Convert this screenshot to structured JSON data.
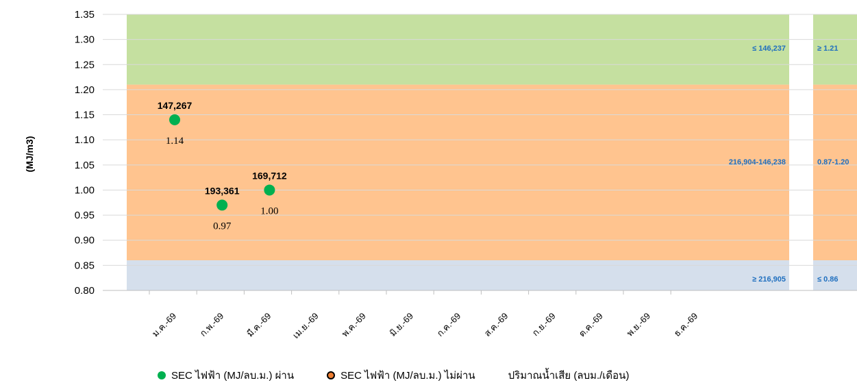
{
  "chart_data": {
    "type": "scatter",
    "ylabel": "(MJ/m3)",
    "ylim": [
      0.8,
      1.35
    ],
    "yticks": [
      "1.35",
      "1.30",
      "1.25",
      "1.20",
      "1.15",
      "1.10",
      "1.05",
      "1.00",
      "0.95",
      "0.90",
      "0.85",
      "0.80"
    ],
    "categories": [
      "ม.ค.-69",
      "ก.พ.-69",
      "มี.ค.-69",
      "เม.ย.-69",
      "พ.ค.-69",
      "มิ.ย.-69",
      "ก.ค.-69",
      "ส.ค.-69",
      "ก.ย.-69",
      "ต.ค.-69",
      "พ.ย.-69",
      "ธ.ค.-69"
    ],
    "series": [
      {
        "name": "SEC ไฟฟ้า (MJ/ลบ.ม.) ผ่าน",
        "color": "#00b050",
        "points": [
          {
            "category": "ม.ค.-69",
            "sec": 1.14,
            "wastewater": "147,267"
          },
          {
            "category": "ก.พ.-69",
            "sec": 0.97,
            "wastewater": "193,361"
          },
          {
            "category": "มี.ค.-69",
            "sec": 1.0,
            "wastewater": "169,712"
          }
        ]
      },
      {
        "name": "SEC ไฟฟ้า (MJ/ลบ.ม.) ไม่ผ่าน",
        "color": "#ed7d31",
        "points": []
      },
      {
        "name": "ปริมาณน้ำเสีย (ลบม./เดือน)",
        "points": []
      }
    ],
    "bands": [
      {
        "from": 1.21,
        "to": 1.35,
        "color": "#c5e0a0",
        "wastewater_label": "≤ 146,237",
        "sec_label": "≥ 1.21"
      },
      {
        "from": 0.86,
        "to": 1.21,
        "color": "#ffc48f",
        "wastewater_label": "216,904-146,238",
        "sec_label": "0.87-1.20"
      },
      {
        "from": 0.8,
        "to": 0.86,
        "color": "#d5dfec",
        "wastewater_label": "≥ 216,905",
        "sec_label": "≤ 0.86"
      }
    ],
    "band_label_color": "#1f6fbf",
    "grid": true,
    "legend": "bottom"
  }
}
